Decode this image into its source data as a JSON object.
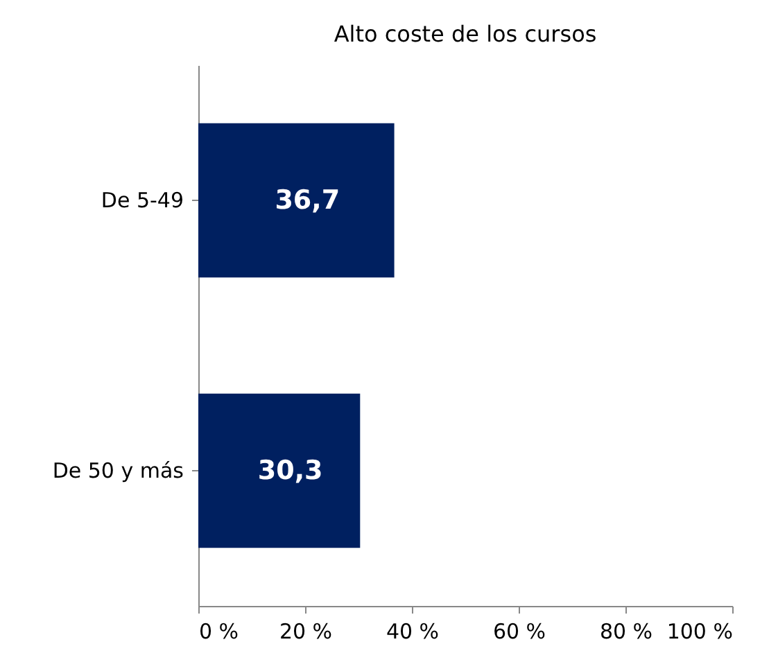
{
  "chart_data": {
    "type": "bar",
    "orientation": "horizontal",
    "title": "Alto coste de los cursos",
    "categories": [
      "De 5-49",
      "De 50 y más"
    ],
    "values": [
      36.7,
      30.3
    ],
    "value_labels": [
      "36,7",
      "30,3"
    ],
    "color": "#002060",
    "xlim": [
      0,
      100
    ],
    "xticks": [
      {
        "value": 0,
        "label": "0 %"
      },
      {
        "value": 20,
        "label": "20 %"
      },
      {
        "value": 40,
        "label": "40 %"
      },
      {
        "value": 60,
        "label": "60 %"
      },
      {
        "value": 80,
        "label": "80 %"
      },
      {
        "value": 100,
        "label": "100 %"
      }
    ],
    "grid": false
  }
}
